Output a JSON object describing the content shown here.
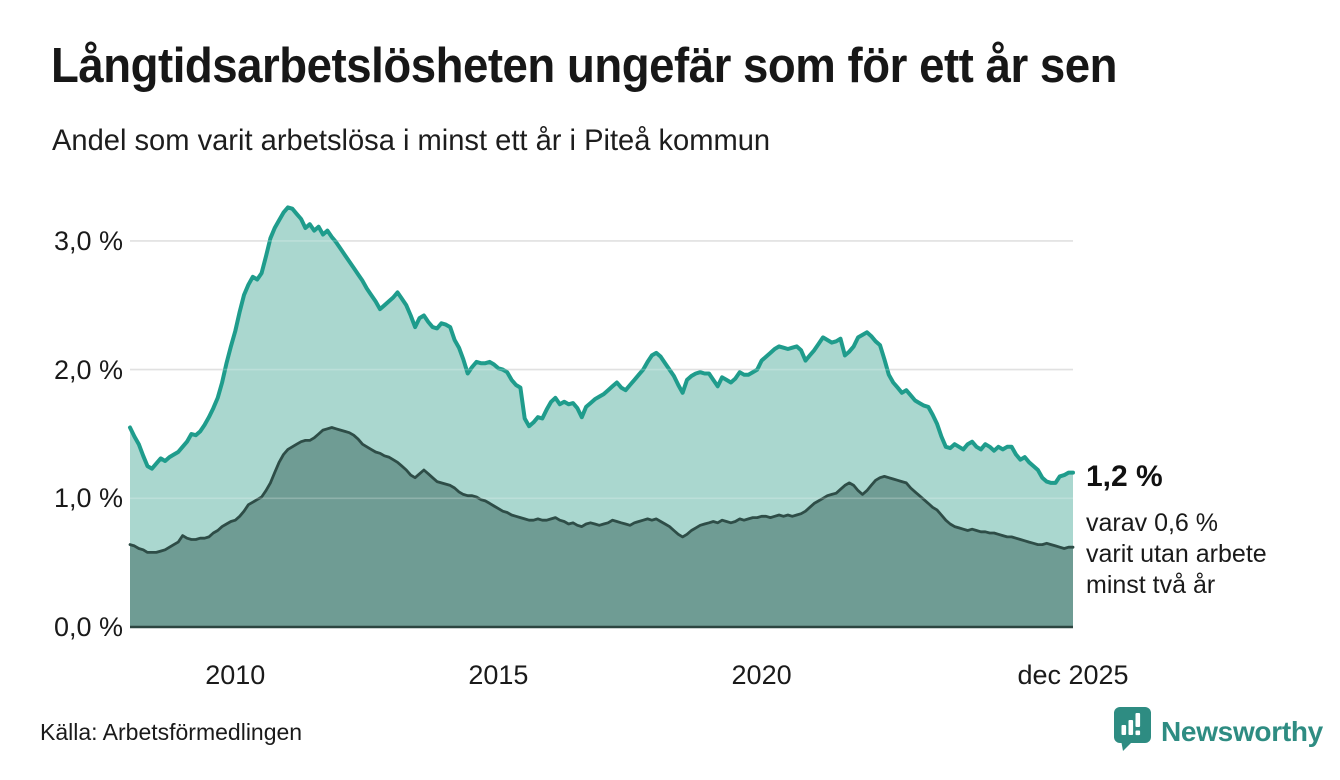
{
  "header": {
    "title": "Långtidsarbetslösheten ungefär som för ett år sen",
    "subtitle": "Andel som varit arbetslösa i minst ett år i Piteå kommun"
  },
  "chart_data": {
    "type": "area",
    "title": "Långtidsarbetslösheten ungefär som för ett år sen",
    "subtitle": "Andel som varit arbetslösa i minst ett år i Piteå kommun",
    "x_unit": "month",
    "x_start": "2008-01",
    "x_end": "2025-12",
    "ylim": [
      0,
      3.4
    ],
    "grid": true,
    "legend": false,
    "colors": {
      "total_line": "#1f9c8c",
      "total_fill": "#aad7cf",
      "two_years_line": "#2e4d47",
      "two_years_fill": "#6f9c94",
      "gridline": "#d9d9d9",
      "baseline": "#2c4540",
      "brand_teal": "#2e8c82"
    },
    "y_ticks": [
      {
        "value": 3.0,
        "label": "3,0 %"
      },
      {
        "value": 2.0,
        "label": "2,0 %"
      },
      {
        "value": 1.0,
        "label": "1,0 %"
      },
      {
        "value": 0.0,
        "label": "0,0 %"
      }
    ],
    "x_ticks": [
      {
        "month": "2010-01",
        "month_index": 24,
        "label": "2010"
      },
      {
        "month": "2015-01",
        "month_index": 84,
        "label": "2015"
      },
      {
        "month": "2020-01",
        "month_index": 144,
        "label": "2020"
      },
      {
        "month": "2025-12",
        "month_index": 215,
        "label": "dec 2025"
      }
    ],
    "series": [
      {
        "name": "Andel som varit arbetslösa i minst ett år",
        "end_value_label": "1,2 %",
        "values": [
          1.55,
          1.48,
          1.42,
          1.33,
          1.25,
          1.23,
          1.27,
          1.31,
          1.29,
          1.32,
          1.34,
          1.36,
          1.4,
          1.44,
          1.5,
          1.49,
          1.52,
          1.57,
          1.63,
          1.7,
          1.78,
          1.9,
          2.05,
          2.18,
          2.3,
          2.45,
          2.58,
          2.66,
          2.72,
          2.7,
          2.75,
          2.88,
          3.02,
          3.1,
          3.16,
          3.22,
          3.26,
          3.25,
          3.21,
          3.17,
          3.1,
          3.13,
          3.08,
          3.11,
          3.05,
          3.08,
          3.03,
          2.99,
          2.94,
          2.89,
          2.84,
          2.79,
          2.74,
          2.69,
          2.63,
          2.58,
          2.53,
          2.47,
          2.5,
          2.53,
          2.56,
          2.6,
          2.55,
          2.5,
          2.42,
          2.33,
          2.4,
          2.42,
          2.37,
          2.33,
          2.32,
          2.36,
          2.35,
          2.33,
          2.23,
          2.17,
          2.08,
          1.97,
          2.02,
          2.06,
          2.05,
          2.05,
          2.06,
          2.04,
          2.01,
          2.0,
          1.98,
          1.92,
          1.88,
          1.86,
          1.62,
          1.56,
          1.59,
          1.63,
          1.62,
          1.69,
          1.75,
          1.78,
          1.73,
          1.75,
          1.73,
          1.74,
          1.7,
          1.63,
          1.71,
          1.74,
          1.77,
          1.79,
          1.81,
          1.84,
          1.87,
          1.9,
          1.86,
          1.84,
          1.88,
          1.92,
          1.96,
          2.0,
          2.06,
          2.11,
          2.13,
          2.1,
          2.05,
          2.0,
          1.95,
          1.88,
          1.82,
          1.92,
          1.95,
          1.97,
          1.98,
          1.97,
          1.97,
          1.92,
          1.87,
          1.94,
          1.92,
          1.9,
          1.93,
          1.98,
          1.96,
          1.96,
          1.98,
          2.0,
          2.07,
          2.1,
          2.13,
          2.16,
          2.18,
          2.17,
          2.16,
          2.17,
          2.18,
          2.15,
          2.07,
          2.11,
          2.15,
          2.2,
          2.25,
          2.23,
          2.21,
          2.22,
          2.24,
          2.11,
          2.14,
          2.18,
          2.25,
          2.27,
          2.29,
          2.26,
          2.22,
          2.19,
          2.08,
          1.96,
          1.9,
          1.86,
          1.82,
          1.84,
          1.8,
          1.76,
          1.74,
          1.72,
          1.71,
          1.65,
          1.58,
          1.48,
          1.4,
          1.39,
          1.42,
          1.4,
          1.38,
          1.42,
          1.44,
          1.4,
          1.38,
          1.42,
          1.4,
          1.37,
          1.4,
          1.38,
          1.4,
          1.4,
          1.34,
          1.3,
          1.32,
          1.28,
          1.25,
          1.22,
          1.16,
          1.13,
          1.12,
          1.12,
          1.17,
          1.18,
          1.2,
          1.2
        ]
      },
      {
        "name": "varav arbetslösa minst två år",
        "end_value_label": "0,6 %",
        "values": [
          0.64,
          0.63,
          0.61,
          0.6,
          0.58,
          0.58,
          0.58,
          0.59,
          0.6,
          0.62,
          0.64,
          0.66,
          0.71,
          0.69,
          0.68,
          0.68,
          0.69,
          0.69,
          0.7,
          0.73,
          0.75,
          0.78,
          0.8,
          0.82,
          0.83,
          0.86,
          0.9,
          0.95,
          0.97,
          0.99,
          1.01,
          1.06,
          1.12,
          1.2,
          1.28,
          1.34,
          1.38,
          1.4,
          1.42,
          1.44,
          1.45,
          1.45,
          1.47,
          1.5,
          1.53,
          1.54,
          1.55,
          1.54,
          1.53,
          1.52,
          1.51,
          1.49,
          1.46,
          1.42,
          1.4,
          1.38,
          1.36,
          1.35,
          1.33,
          1.32,
          1.3,
          1.28,
          1.25,
          1.22,
          1.18,
          1.16,
          1.19,
          1.22,
          1.19,
          1.16,
          1.13,
          1.12,
          1.11,
          1.1,
          1.08,
          1.05,
          1.03,
          1.02,
          1.02,
          1.01,
          0.99,
          0.98,
          0.96,
          0.94,
          0.92,
          0.9,
          0.89,
          0.87,
          0.86,
          0.85,
          0.84,
          0.83,
          0.83,
          0.84,
          0.83,
          0.83,
          0.84,
          0.85,
          0.83,
          0.82,
          0.8,
          0.81,
          0.79,
          0.78,
          0.8,
          0.81,
          0.8,
          0.79,
          0.8,
          0.81,
          0.83,
          0.82,
          0.81,
          0.8,
          0.79,
          0.81,
          0.82,
          0.83,
          0.84,
          0.83,
          0.84,
          0.82,
          0.8,
          0.78,
          0.75,
          0.72,
          0.7,
          0.72,
          0.75,
          0.77,
          0.79,
          0.8,
          0.81,
          0.82,
          0.81,
          0.83,
          0.82,
          0.81,
          0.82,
          0.84,
          0.83,
          0.84,
          0.85,
          0.85,
          0.86,
          0.86,
          0.85,
          0.86,
          0.87,
          0.86,
          0.87,
          0.86,
          0.87,
          0.88,
          0.9,
          0.93,
          0.96,
          0.98,
          1.0,
          1.02,
          1.03,
          1.04,
          1.07,
          1.1,
          1.12,
          1.1,
          1.06,
          1.03,
          1.06,
          1.1,
          1.14,
          1.16,
          1.17,
          1.16,
          1.15,
          1.14,
          1.13,
          1.12,
          1.08,
          1.05,
          1.02,
          0.99,
          0.96,
          0.93,
          0.91,
          0.87,
          0.83,
          0.8,
          0.78,
          0.77,
          0.76,
          0.75,
          0.76,
          0.75,
          0.74,
          0.74,
          0.73,
          0.73,
          0.72,
          0.71,
          0.7,
          0.7,
          0.69,
          0.68,
          0.67,
          0.66,
          0.65,
          0.64,
          0.64,
          0.65,
          0.64,
          0.63,
          0.62,
          0.61,
          0.62,
          0.62
        ]
      }
    ],
    "annotations": {
      "end_value": "1,2 %",
      "end_note": "varav 0,6 %\nvarit utan arbete\nminst två år"
    }
  },
  "footer": {
    "source": "Källa: Arbetsförmedlingen",
    "brand": "Newsworthy"
  }
}
